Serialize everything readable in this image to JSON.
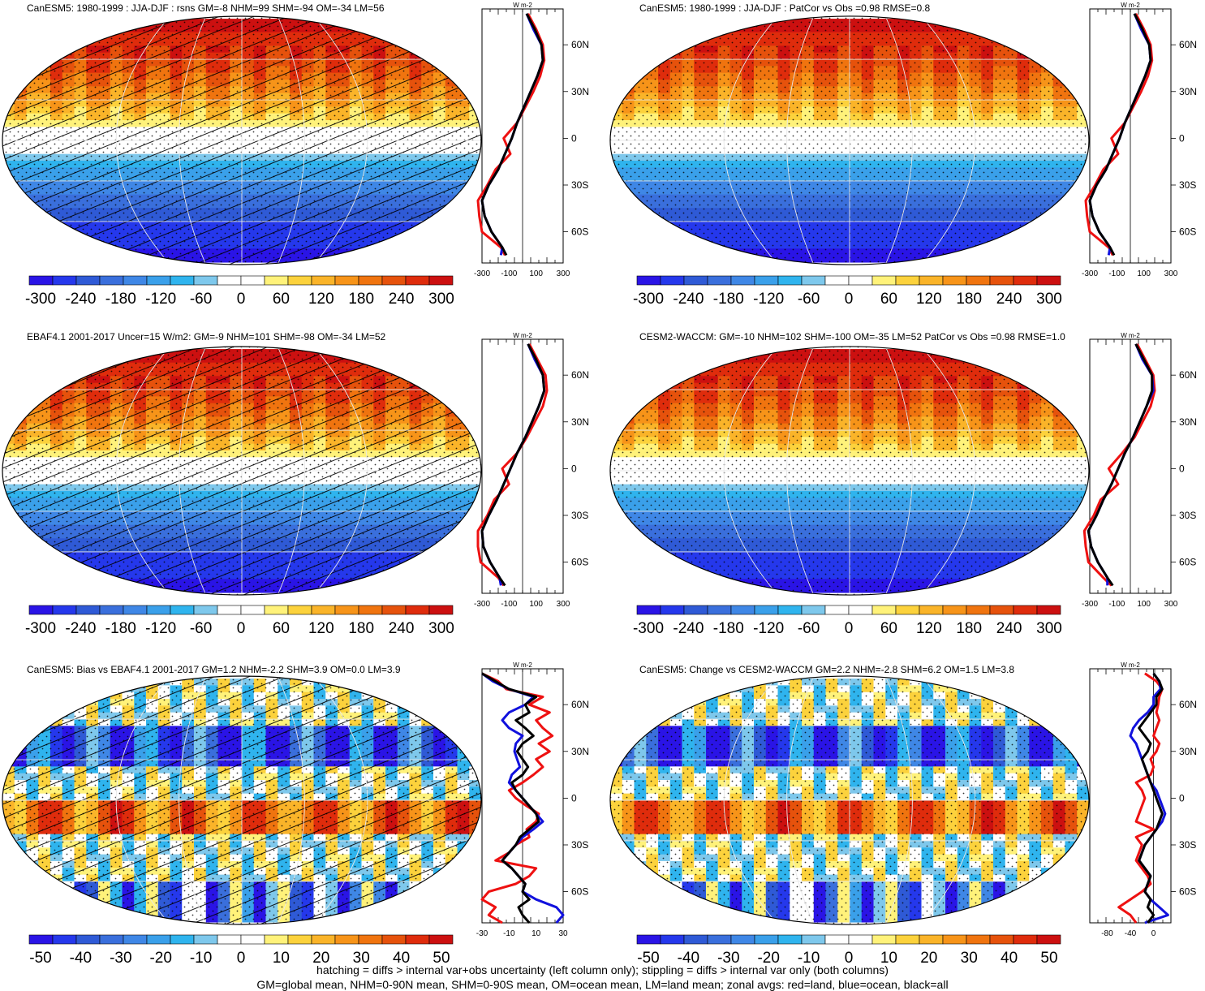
{
  "footer": {
    "line1": "hatching = diffs > internal var+obs uncertainty (left column only); stippling = diffs > internal var only (both columns)",
    "line2": "GM=global mean, NHM=0-90N mean, SHM=0-90S mean, OM=ocean mean, LM=land mean; zonal avgs: red=land, blue=ocean, black=all"
  },
  "colors": {
    "land": "#ee1111",
    "ocean": "#1111dd",
    "all": "#000000",
    "map_palette": [
      "#2a14e6",
      "#2538ec",
      "#2f5ad6",
      "#3a6fdc",
      "#3f87e6",
      "#3aa0ea",
      "#2fb4ee",
      "#7ec8ec",
      "#ffffff",
      "#ffffff",
      "#fff27a",
      "#fcd23c",
      "#fab429",
      "#f79419",
      "#f0740f",
      "#e6520c",
      "#df2c0c",
      "#cc1010"
    ]
  },
  "chart_data": [
    {
      "type": "heatmap",
      "title": "CanESM5: 1980-1999 : JJA-DJF : rsns GM=-8 NHM=99 SHM=-94 OM=-34 LM=56",
      "hatching": true,
      "colorbar_labels": [
        "-300",
        "-240",
        "-180",
        "-120",
        "-60",
        "0",
        "60",
        "120",
        "180",
        "240",
        "300"
      ],
      "range": [
        -300,
        300
      ],
      "zonal": {
        "unit": "W m-2",
        "x_ticks": [
          "-300",
          "-100",
          "100",
          "300"
        ],
        "xlim": [
          -300,
          300
        ],
        "y_ticks": [
          "60N",
          "30N",
          "0",
          "30S",
          "60S"
        ],
        "lat": [
          80,
          70,
          60,
          50,
          40,
          30,
          20,
          10,
          0,
          -10,
          -20,
          -30,
          -40,
          -50,
          -60,
          -70,
          -75
        ],
        "all": [
          30,
          90,
          140,
          150,
          110,
          60,
          10,
          -40,
          -80,
          -130,
          -180,
          -250,
          -300,
          -280,
          -230,
          -150,
          -120
        ],
        "land": [
          40,
          100,
          150,
          160,
          130,
          80,
          20,
          -40,
          -140,
          -90,
          -200,
          -260,
          -330,
          -320,
          -300,
          -160,
          -130
        ],
        "ocean": [
          30,
          80,
          140,
          150,
          110,
          60,
          10,
          -40,
          -80,
          -130,
          -180,
          -250,
          -300,
          -280,
          -230,
          -150,
          -160
        ]
      }
    },
    {
      "type": "heatmap",
      "title": "CanESM5: 1980-1999 : JJA-DJF : PatCor vs Obs =0.98 RMSE=0.8",
      "hatching": false,
      "colorbar_labels": [
        "-300",
        "-240",
        "-180",
        "-120",
        "-60",
        "0",
        "60",
        "120",
        "180",
        "240",
        "300"
      ],
      "range": [
        -300,
        300
      ],
      "zonal": {
        "unit": "W m-2",
        "x_ticks": [
          "-300",
          "-100",
          "100",
          "300"
        ],
        "xlim": [
          -300,
          300
        ],
        "y_ticks": [
          "60N",
          "30N",
          "0",
          "30S",
          "60S"
        ],
        "lat": [
          80,
          70,
          60,
          50,
          40,
          30,
          20,
          10,
          0,
          -10,
          -20,
          -30,
          -40,
          -50,
          -60,
          -70,
          -75
        ],
        "all": [
          30,
          90,
          140,
          150,
          110,
          60,
          10,
          -40,
          -80,
          -130,
          -180,
          -250,
          -300,
          -280,
          -230,
          -150,
          -120
        ],
        "land": [
          40,
          100,
          150,
          160,
          130,
          80,
          20,
          -40,
          -140,
          -90,
          -200,
          -260,
          -330,
          -320,
          -300,
          -160,
          -130
        ],
        "ocean": [
          30,
          80,
          140,
          150,
          110,
          60,
          10,
          -40,
          -80,
          -130,
          -180,
          -250,
          -300,
          -280,
          -230,
          -150,
          -160
        ]
      }
    },
    {
      "type": "heatmap",
      "title": "EBAF4.1 2001-2017 Uncer=15 W/m2: GM=-9 NHM=101 SHM=-98 OM=-34 LM=52",
      "hatching": true,
      "colorbar_labels": [
        "-300",
        "-240",
        "-180",
        "-120",
        "-60",
        "0",
        "60",
        "120",
        "180",
        "240",
        "300"
      ],
      "range": [
        -300,
        300
      ],
      "zonal": {
        "unit": "W m-2",
        "x_ticks": [
          "-300",
          "-100",
          "100",
          "300"
        ],
        "xlim": [
          -300,
          300
        ],
        "y_ticks": [
          "60N",
          "30N",
          "0",
          "30S",
          "60S"
        ],
        "lat": [
          80,
          70,
          60,
          50,
          40,
          30,
          20,
          10,
          0,
          -10,
          -20,
          -30,
          -40,
          -50,
          -60,
          -70,
          -75
        ],
        "all": [
          40,
          100,
          150,
          160,
          120,
          70,
          20,
          -40,
          -90,
          -140,
          -190,
          -250,
          -300,
          -290,
          -240,
          -170,
          -130
        ],
        "land": [
          50,
          110,
          170,
          180,
          150,
          90,
          30,
          -40,
          -150,
          -100,
          -210,
          -260,
          -330,
          -330,
          -310,
          -180,
          -140
        ],
        "ocean": [
          40,
          90,
          150,
          160,
          120,
          70,
          20,
          -40,
          -90,
          -140,
          -190,
          -250,
          -300,
          -290,
          -240,
          -170,
          -160
        ]
      }
    },
    {
      "type": "heatmap",
      "title": "CESM2-WACCM: GM=-10 NHM=102 SHM=-100 OM=-35 LM=52 PatCor vs Obs =0.98 RMSE=1.0",
      "hatching": false,
      "colorbar_labels": [
        "-300",
        "-240",
        "-180",
        "-120",
        "-60",
        "0",
        "60",
        "120",
        "180",
        "240",
        "300"
      ],
      "range": [
        -300,
        300
      ],
      "zonal": {
        "unit": "W m-2",
        "x_ticks": [
          "-300",
          "-100",
          "100",
          "300"
        ],
        "xlim": [
          -300,
          300
        ],
        "y_ticks": [
          "60N",
          "30N",
          "0",
          "30S",
          "60S"
        ],
        "lat": [
          80,
          70,
          60,
          50,
          40,
          30,
          20,
          10,
          0,
          -10,
          -20,
          -30,
          -40,
          -50,
          -60,
          -70,
          -75
        ],
        "all": [
          40,
          100,
          160,
          160,
          120,
          70,
          20,
          -40,
          -90,
          -140,
          -200,
          -250,
          -310,
          -290,
          -240,
          -170,
          -130
        ],
        "land": [
          50,
          110,
          170,
          180,
          150,
          90,
          30,
          -60,
          -160,
          -90,
          -220,
          -270,
          -340,
          -330,
          -310,
          -200,
          -140
        ],
        "ocean": [
          40,
          90,
          160,
          170,
          120,
          70,
          20,
          -40,
          -90,
          -140,
          -200,
          -250,
          -310,
          -290,
          -240,
          -170,
          -170
        ]
      }
    },
    {
      "type": "heatmap",
      "title": "CanESM5: Bias vs EBAF4.1 2001-2017 GM=1.2 NHM=-2.2 SHM=3.9 OM=0.0 LM=3.9",
      "hatching": true,
      "colorbar_labels": [
        "-50",
        "-40",
        "-30",
        "-20",
        "-10",
        "0",
        "10",
        "20",
        "30",
        "40",
        "50"
      ],
      "range": [
        -50,
        50
      ],
      "zonal": {
        "unit": "W m-2",
        "x_ticks": [
          "-30",
          "-10",
          "10",
          "30"
        ],
        "xlim": [
          -30,
          30
        ],
        "y_ticks": [
          "60N",
          "30N",
          "0",
          "30S",
          "60S"
        ],
        "lat": [
          80,
          75,
          70,
          65,
          60,
          55,
          50,
          45,
          40,
          35,
          30,
          25,
          20,
          15,
          10,
          5,
          0,
          -5,
          -10,
          -15,
          -20,
          -25,
          -30,
          -35,
          -40,
          -45,
          -50,
          -55,
          -60,
          -65,
          -70,
          -75,
          -80
        ],
        "all": [
          -30,
          -20,
          -10,
          10,
          2,
          5,
          -5,
          2,
          8,
          0,
          -4,
          0,
          4,
          0,
          -8,
          -5,
          0,
          5,
          10,
          12,
          5,
          -2,
          -5,
          -10,
          -15,
          -8,
          -3,
          2,
          0,
          5,
          -3,
          0,
          5
        ],
        "land": [
          -30,
          -18,
          -12,
          15,
          5,
          20,
          10,
          15,
          22,
          12,
          20,
          10,
          15,
          8,
          0,
          -10,
          -5,
          3,
          12,
          10,
          3,
          5,
          -5,
          -10,
          -20,
          10,
          5,
          -5,
          -25,
          -30,
          -20,
          -25,
          -15
        ],
        "ocean": [
          -30,
          -22,
          -10,
          8,
          2,
          -10,
          -15,
          -10,
          0,
          -5,
          -6,
          -4,
          -2,
          -8,
          -10,
          -5,
          0,
          5,
          10,
          15,
          8,
          0,
          -5,
          -10,
          -15,
          -8,
          -3,
          2,
          0,
          10,
          25,
          30,
          25
        ]
      }
    },
    {
      "type": "heatmap",
      "title": "CanESM5: Change vs CESM2-WACCM GM=2.2 NHM=-2.8 SHM=6.2 OM=1.5 LM=3.8",
      "hatching": false,
      "colorbar_labels": [
        "-50",
        "-40",
        "-30",
        "-20",
        "-10",
        "0",
        "10",
        "20",
        "30",
        "40",
        "50"
      ],
      "range": [
        -50,
        50
      ],
      "zonal": {
        "unit": "W m-2",
        "x_ticks": [
          "-80",
          "-40",
          "0"
        ],
        "xlim": [
          -110,
          30
        ],
        "y_ticks": [
          "60N",
          "30N",
          "0",
          "30S",
          "60S"
        ],
        "lat": [
          80,
          75,
          70,
          65,
          60,
          55,
          50,
          45,
          40,
          35,
          30,
          25,
          20,
          15,
          10,
          5,
          0,
          -5,
          -10,
          -15,
          -20,
          -25,
          -30,
          -35,
          -40,
          -45,
          -50,
          -55,
          -60,
          -65,
          -70,
          -75,
          -80
        ],
        "all": [
          0,
          10,
          15,
          5,
          5,
          -5,
          -15,
          -25,
          -15,
          -5,
          -10,
          -20,
          -15,
          -10,
          -5,
          0,
          5,
          10,
          15,
          10,
          5,
          -5,
          -15,
          -20,
          -25,
          -15,
          -5,
          -10,
          -15,
          -5,
          -10,
          0,
          -10
        ],
        "land": [
          -15,
          5,
          15,
          10,
          8,
          5,
          10,
          5,
          0,
          10,
          5,
          -5,
          0,
          -5,
          -30,
          -20,
          -15,
          -20,
          -25,
          -30,
          0,
          -30,
          -20,
          -25,
          -30,
          -20,
          -10,
          -5,
          -20,
          -40,
          -60,
          -40,
          -30
        ],
        "ocean": [
          0,
          10,
          12,
          0,
          0,
          -10,
          -25,
          -35,
          -40,
          -30,
          -25,
          -20,
          -15,
          -10,
          -5,
          5,
          10,
          15,
          20,
          15,
          5,
          -5,
          -15,
          -20,
          -25,
          -15,
          -5,
          -10,
          -15,
          -5,
          10,
          25,
          -15
        ]
      }
    }
  ]
}
